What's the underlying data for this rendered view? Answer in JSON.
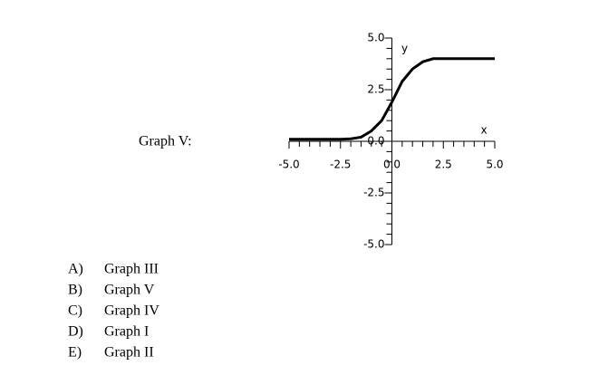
{
  "label": "Graph V:",
  "chart_data": {
    "type": "line",
    "x": [
      -5,
      -4.5,
      -4,
      -3.5,
      -3,
      -2.5,
      -2,
      -1.5,
      -1,
      -0.5,
      0,
      0.5,
      1,
      1.5,
      2,
      2.5,
      3,
      3.5,
      4,
      4.5,
      5
    ],
    "values": [
      0.1,
      0.1,
      0.1,
      0.1,
      0.1,
      0.1,
      0.12,
      0.2,
      0.5,
      1.0,
      1.9,
      2.9,
      3.5,
      3.85,
      4.0,
      4.0,
      4.0,
      4.0,
      4.0,
      4.0,
      4.0
    ],
    "color": "#000000",
    "xlim": [
      -5,
      5
    ],
    "ylim": [
      -5,
      5
    ],
    "xticks": [
      {
        "value": -5,
        "label": "-5.0"
      },
      {
        "value": -2.5,
        "label": "-2.5"
      },
      {
        "value": 0,
        "label": "0.0"
      },
      {
        "value": 2.5,
        "label": "2.5"
      },
      {
        "value": 5,
        "label": "5.0"
      }
    ],
    "yticks": [
      {
        "value": -5,
        "label": "-5.0"
      },
      {
        "value": -2.5,
        "label": "-2.5"
      },
      {
        "value": 0,
        "label": "0.0"
      },
      {
        "value": 2.5,
        "label": "2.5"
      },
      {
        "value": 5,
        "label": "5.0"
      }
    ],
    "xlabel": "x",
    "ylabel": "y"
  },
  "options": [
    {
      "letter": "A)",
      "text": "Graph III"
    },
    {
      "letter": "B)",
      "text": "Graph V"
    },
    {
      "letter": "C)",
      "text": "Graph IV"
    },
    {
      "letter": "D)",
      "text": "Graph I"
    },
    {
      "letter": "E)",
      "text": "Graph II"
    }
  ]
}
